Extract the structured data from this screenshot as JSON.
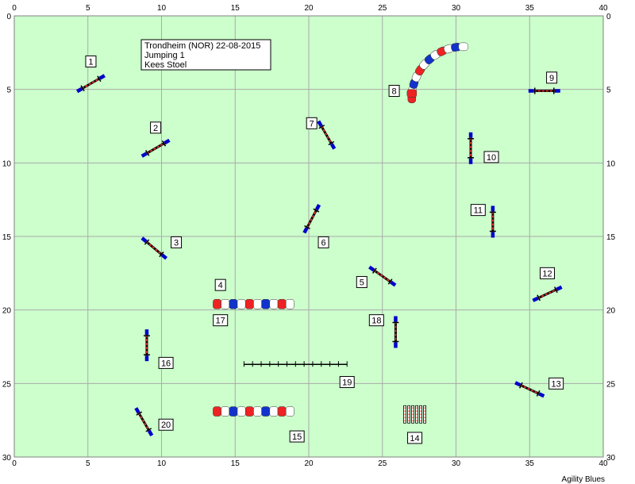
{
  "axes": {
    "x_ticks": [
      "0",
      "5",
      "10",
      "15",
      "20",
      "25",
      "30",
      "35",
      "40"
    ],
    "y_ticks": [
      "0",
      "5",
      "10",
      "15",
      "20",
      "25",
      "30"
    ],
    "x_range": [
      0,
      40
    ],
    "y_range": [
      0,
      30
    ]
  },
  "info_box": {
    "line1": "Trondheim (NOR) 22-08-2015",
    "line2": "Jumping 1",
    "line3": "Kees Stoel"
  },
  "credit": "Agility Blues",
  "colors": {
    "field": "#ccffcc",
    "grid": "#aaaaaa",
    "jump_bar": "#ff3333",
    "jump_wing": "#0000cc",
    "tunnel_red": "#ee2222",
    "tunnel_blue": "#1133cc",
    "tunnel_white": "#ffffff"
  },
  "obstacles": [
    {
      "num": "1",
      "type": "jump",
      "x": 5.2,
      "y": 4.6,
      "angle": -30,
      "label_x": 5.2,
      "label_y": 3.1
    },
    {
      "num": "2",
      "type": "jump",
      "x": 9.6,
      "y": 9.0,
      "angle": -30,
      "label_x": 9.6,
      "label_y": 7.6
    },
    {
      "num": "3",
      "type": "jump",
      "x": 9.5,
      "y": 15.8,
      "angle": 40,
      "label_x": 11.0,
      "label_y": 15.4
    },
    {
      "num": "4",
      "type": "tunnel",
      "x1": 13.5,
      "y1": 19.6,
      "x2": 19.0,
      "y2": 19.6,
      "label_x": 14.0,
      "label_y": 18.3
    },
    {
      "num": "5",
      "type": "jump",
      "x": 25.0,
      "y": 17.7,
      "angle": 35,
      "label_x": 23.6,
      "label_y": 18.1
    },
    {
      "num": "6",
      "type": "jump",
      "x": 20.2,
      "y": 13.8,
      "angle": -62,
      "label_x": 21.0,
      "label_y": 15.4
    },
    {
      "num": "7",
      "type": "jump",
      "x": 21.2,
      "y": 8.1,
      "angle": 60,
      "label_x": 20.2,
      "label_y": 7.3
    },
    {
      "num": "8",
      "type": "tunnel_curve",
      "label_x": 25.8,
      "label_y": 5.1
    },
    {
      "num": "9",
      "type": "jump",
      "x": 36.0,
      "y": 5.1,
      "angle": 0,
      "label_x": 36.5,
      "label_y": 4.2
    },
    {
      "num": "10",
      "type": "jump",
      "x": 31.0,
      "y": 9.0,
      "angle": 90,
      "label_x": 32.4,
      "label_y": 9.6
    },
    {
      "num": "11",
      "type": "jump",
      "x": 32.5,
      "y": 14.0,
      "angle": 90,
      "label_x": 31.5,
      "label_y": 13.2
    },
    {
      "num": "12",
      "type": "jump",
      "x": 36.2,
      "y": 18.9,
      "angle": -25,
      "label_x": 36.2,
      "label_y": 17.5
    },
    {
      "num": "13",
      "type": "jump",
      "x": 35.0,
      "y": 25.4,
      "angle": 25,
      "label_x": 36.8,
      "label_y": 25.0
    },
    {
      "num": "14",
      "type": "weave",
      "x": 27.2,
      "y": 27.1,
      "label_x": 27.2,
      "label_y": 28.7
    },
    {
      "num": "15",
      "type": "tunnel",
      "x1": 13.5,
      "y1": 26.9,
      "x2": 19.0,
      "y2": 26.9,
      "label_x": 19.2,
      "label_y": 28.6
    },
    {
      "num": "16",
      "type": "jump",
      "x": 9.0,
      "y": 22.4,
      "angle": 90,
      "label_x": 10.3,
      "label_y": 23.6
    },
    {
      "num": "17",
      "type": "label_only",
      "label_x": 14.0,
      "label_y": 20.7
    },
    {
      "num": "18",
      "type": "jump",
      "x": 25.9,
      "y": 21.5,
      "angle": 90,
      "label_x": 24.6,
      "label_y": 20.7
    },
    {
      "num": "19",
      "type": "walk",
      "x1": 15.6,
      "y1": 23.7,
      "x2": 22.6,
      "y2": 23.7,
      "label_x": 22.6,
      "label_y": 24.9
    },
    {
      "num": "20",
      "type": "jump",
      "x": 8.8,
      "y": 27.6,
      "angle": 60,
      "label_x": 10.3,
      "label_y": 27.8
    }
  ]
}
